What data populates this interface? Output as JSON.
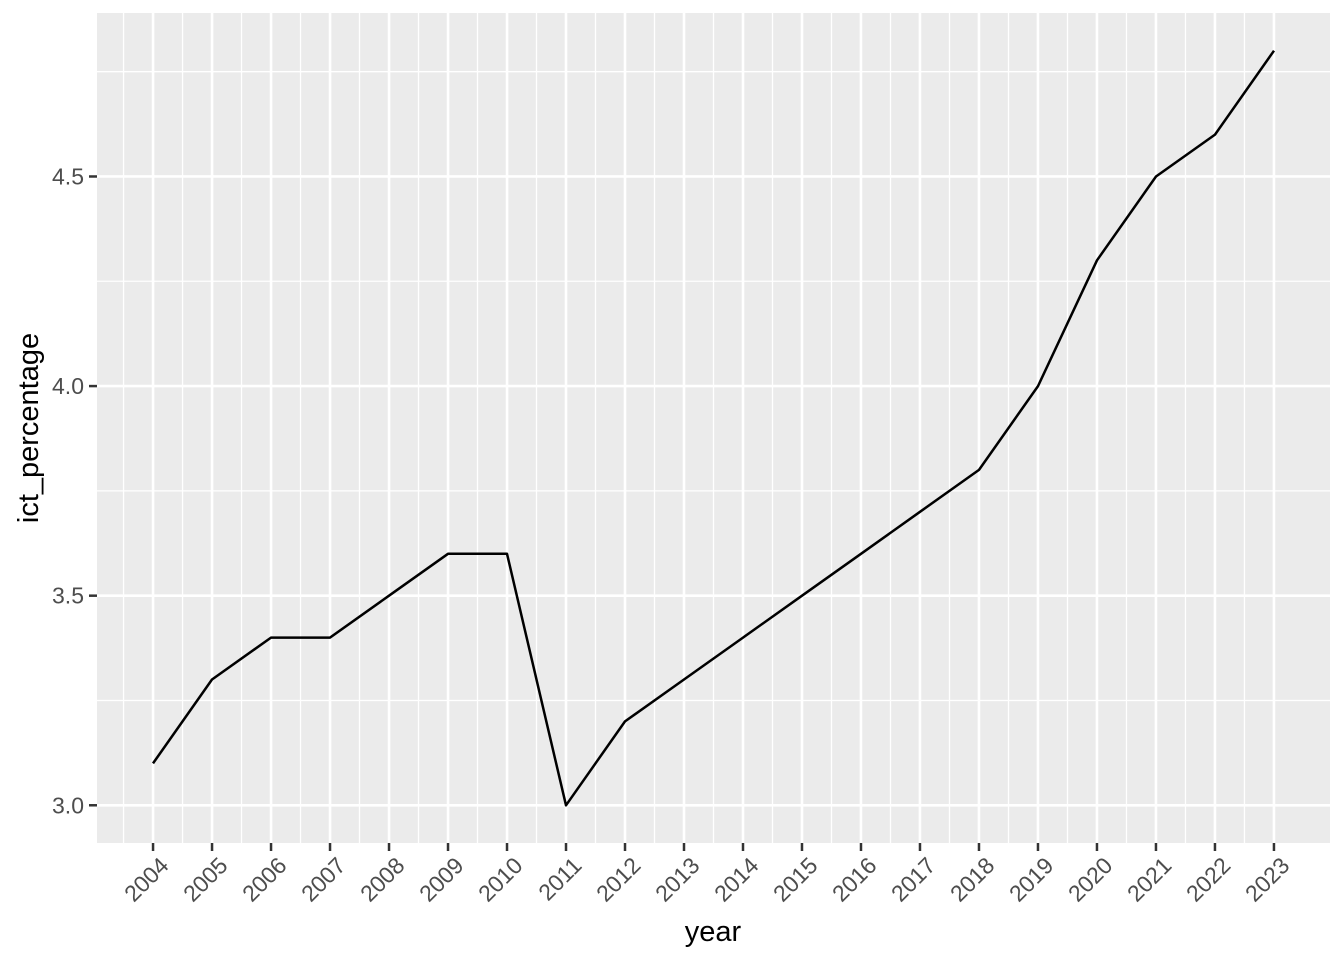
{
  "chart_data": {
    "type": "line",
    "title": "",
    "xlabel": "year",
    "ylabel": "ict_percentage",
    "x": [
      2004,
      2005,
      2006,
      2007,
      2008,
      2009,
      2010,
      2011,
      2012,
      2013,
      2014,
      2015,
      2016,
      2017,
      2018,
      2019,
      2020,
      2021,
      2022,
      2023
    ],
    "series": [
      {
        "name": "ict_percentage",
        "color": "#000000",
        "values": [
          3.1,
          3.3,
          3.4,
          3.4,
          3.5,
          3.6,
          3.6,
          3.0,
          3.2,
          3.3,
          3.4,
          3.5,
          3.6,
          3.7,
          3.8,
          4.0,
          4.3,
          4.5,
          4.6,
          4.8
        ]
      }
    ],
    "x_tick_labels": [
      "2004",
      "2005",
      "2006",
      "2007",
      "2008",
      "2009",
      "2010",
      "2011",
      "2012",
      "2013",
      "2014",
      "2015",
      "2016",
      "2017",
      "2018",
      "2019",
      "2020",
      "2021",
      "2022",
      "2023"
    ],
    "x_tick_label_angle": 45,
    "y_tick_labels": [
      "3.0",
      "3.5",
      "4.0",
      "4.5"
    ],
    "y_tick_values": [
      3.0,
      3.5,
      4.0,
      4.5
    ],
    "x_minor_breaks": [
      2003.5,
      2004.5,
      2005.5,
      2006.5,
      2007.5,
      2008.5,
      2009.5,
      2010.5,
      2011.5,
      2012.5,
      2013.5,
      2014.5,
      2015.5,
      2016.5,
      2017.5,
      2018.5,
      2019.5,
      2020.5,
      2021.5,
      2022.5
    ],
    "y_minor_breaks": [
      3.25,
      3.75,
      4.25,
      4.75
    ],
    "xlim": [
      2003.05,
      2023.95
    ],
    "ylim": [
      2.91,
      4.89
    ],
    "grid": "major+minor",
    "legend_position": "none",
    "colors": {
      "figure_background": "#FFFFFF",
      "panel_background": "#EBEBEB",
      "gridline": "#FFFFFF",
      "line": "#000000",
      "tick_mark": "#333333",
      "tick_label": "#4D4D4D",
      "axis_title": "#000000"
    }
  }
}
